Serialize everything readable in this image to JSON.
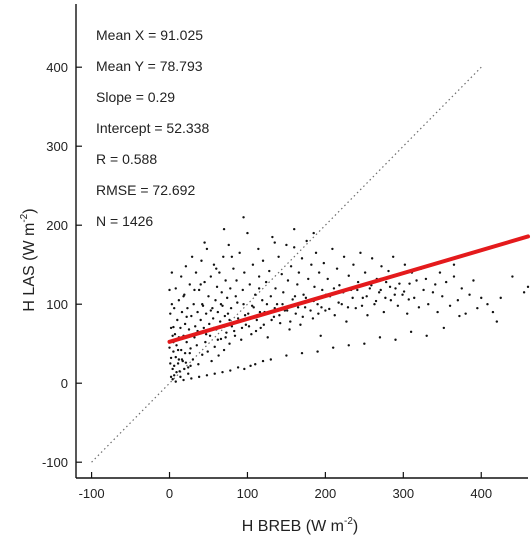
{
  "chart_data": {
    "type": "scatter",
    "xlabel": {
      "main": "H BREB (W m",
      "sup": "-2",
      "close": ")"
    },
    "ylabel": {
      "main": "H LAS (W m",
      "sup": "-2",
      "close": ")"
    },
    "xlim": [
      -120,
      460
    ],
    "ylim": [
      -120,
      480
    ],
    "xticks": [
      -100,
      0,
      100,
      200,
      300,
      400
    ],
    "yticks": [
      -100,
      0,
      100,
      200,
      300,
      400
    ],
    "grid": false,
    "stats": [
      "Mean X = 91.025",
      "Mean Y = 78.793",
      "Slope = 0.29",
      "Intercept = 52.338",
      "R = 0.588",
      "RMSE = 72.692",
      "N = 1426"
    ],
    "regression": {
      "slope": 0.29,
      "intercept": 52.338,
      "color": "#e41a1c"
    },
    "one_to_one_line": {
      "x": [
        -100,
        400
      ],
      "y": [
        -100,
        400
      ],
      "color": "#6e6e6e"
    },
    "points": [
      [
        2,
        32
      ],
      [
        3,
        54
      ],
      [
        4,
        18
      ],
      [
        5,
        71
      ],
      [
        5,
        40
      ],
      [
        6,
        95
      ],
      [
        6,
        10
      ],
      [
        7,
        62
      ],
      [
        8,
        120
      ],
      [
        8,
        33
      ],
      [
        9,
        48
      ],
      [
        10,
        80
      ],
      [
        11,
        25
      ],
      [
        12,
        105
      ],
      [
        12,
        58
      ],
      [
        13,
        15
      ],
      [
        14,
        70
      ],
      [
        15,
        135
      ],
      [
        15,
        42
      ],
      [
        16,
        90
      ],
      [
        17,
        28
      ],
      [
        18,
        60
      ],
      [
        19,
        112
      ],
      [
        20,
        75
      ],
      [
        20,
        38
      ],
      [
        21,
        148
      ],
      [
        22,
        52
      ],
      [
        23,
        95
      ],
      [
        24,
        20
      ],
      [
        25,
        68
      ],
      [
        26,
        125
      ],
      [
        27,
        44
      ],
      [
        28,
        85
      ],
      [
        29,
        160
      ],
      [
        30,
        30
      ],
      [
        31,
        100
      ],
      [
        32,
        58
      ],
      [
        33,
        72
      ],
      [
        34,
        140
      ],
      [
        35,
        48
      ],
      [
        36,
        90
      ],
      [
        37,
        24
      ],
      [
        38,
        118
      ],
      [
        39,
        64
      ],
      [
        40,
        80
      ],
      [
        41,
        155
      ],
      [
        42,
        36
      ],
      [
        43,
        98
      ],
      [
        44,
        70
      ],
      [
        45,
        128
      ],
      [
        46,
        52
      ],
      [
        47,
        88
      ],
      [
        48,
        170
      ],
      [
        49,
        40
      ],
      [
        50,
        110
      ],
      [
        51,
        75
      ],
      [
        52,
        60
      ],
      [
        53,
        135
      ],
      [
        54,
        28
      ],
      [
        55,
        95
      ],
      [
        56,
        82
      ],
      [
        57,
        150
      ],
      [
        58,
        46
      ],
      [
        59,
        105
      ],
      [
        60,
        68
      ],
      [
        61,
        122
      ],
      [
        62,
        90
      ],
      [
        63,
        35
      ],
      [
        64,
        140
      ],
      [
        65,
        78
      ],
      [
        66,
        56
      ],
      [
        67,
        115
      ],
      [
        68,
        98
      ],
      [
        69,
        160
      ],
      [
        70,
        42
      ],
      [
        71,
        85
      ],
      [
        72,
        130
      ],
      [
        73,
        64
      ],
      [
        74,
        108
      ],
      [
        75,
        88
      ],
      [
        76,
        175
      ],
      [
        77,
        50
      ],
      [
        78,
        120
      ],
      [
        79,
        95
      ],
      [
        80,
        72
      ],
      [
        82,
        145
      ],
      [
        84,
        60
      ],
      [
        85,
        110
      ],
      [
        86,
        130
      ],
      [
        88,
        82
      ],
      [
        90,
        165
      ],
      [
        92,
        55
      ],
      [
        94,
        118
      ],
      [
        95,
        100
      ],
      [
        96,
        140
      ],
      [
        98,
        74
      ],
      [
        100,
        190
      ],
      [
        101,
        88
      ],
      [
        103,
        125
      ],
      [
        105,
        62
      ],
      [
        107,
        150
      ],
      [
        108,
        96
      ],
      [
        110,
        112
      ],
      [
        112,
        80
      ],
      [
        114,
        170
      ],
      [
        115,
        135
      ],
      [
        117,
        70
      ],
      [
        119,
        105
      ],
      [
        120,
        155
      ],
      [
        122,
        90
      ],
      [
        124,
        128
      ],
      [
        126,
        58
      ],
      [
        128,
        142
      ],
      [
        130,
        110
      ],
      [
        132,
        185
      ],
      [
        134,
        84
      ],
      [
        136,
        120
      ],
      [
        138,
        100
      ],
      [
        140,
        160
      ],
      [
        142,
        76
      ],
      [
        144,
        138
      ],
      [
        146,
        115
      ],
      [
        148,
        92
      ],
      [
        150,
        175
      ],
      [
        152,
        130
      ],
      [
        154,
        68
      ],
      [
        156,
        148
      ],
      [
        158,
        106
      ],
      [
        160,
        195
      ],
      [
        162,
        88
      ],
      [
        164,
        125
      ],
      [
        166,
        140
      ],
      [
        168,
        74
      ],
      [
        170,
        158
      ],
      [
        172,
        112
      ],
      [
        174,
        96
      ],
      [
        176,
        180
      ],
      [
        178,
        132
      ],
      [
        180,
        104
      ],
      [
        182,
        150
      ],
      [
        184,
        82
      ],
      [
        186,
        122
      ],
      [
        188,
        165
      ],
      [
        190,
        100
      ],
      [
        192,
        140
      ],
      [
        194,
        60
      ],
      [
        196,
        118
      ],
      [
        198,
        152
      ],
      [
        200,
        92
      ],
      [
        203,
        132
      ],
      [
        206,
        110
      ],
      [
        209,
        170
      ],
      [
        212,
        86
      ],
      [
        215,
        145
      ],
      [
        218,
        124
      ],
      [
        221,
        100
      ],
      [
        224,
        160
      ],
      [
        227,
        78
      ],
      [
        230,
        136
      ],
      [
        233,
        118
      ],
      [
        236,
        150
      ],
      [
        239,
        95
      ],
      [
        242,
        128
      ],
      [
        245,
        165
      ],
      [
        248,
        108
      ],
      [
        251,
        140
      ],
      [
        254,
        86
      ],
      [
        257,
        120
      ],
      [
        260,
        158
      ],
      [
        263,
        100
      ],
      [
        266,
        132
      ],
      [
        269,
        115
      ],
      [
        272,
        148
      ],
      [
        275,
        90
      ],
      [
        278,
        128
      ],
      [
        281,
        142
      ],
      [
        284,
        105
      ],
      [
        287,
        160
      ],
      [
        290,
        120
      ],
      [
        293,
        98
      ],
      [
        296,
        138
      ],
      [
        299,
        112
      ],
      [
        302,
        150
      ],
      [
        305,
        88
      ],
      [
        308,
        126
      ],
      [
        311,
        140
      ],
      [
        314,
        108
      ],
      [
        317,
        130
      ],
      [
        320,
        96
      ],
      [
        323,
        145
      ],
      [
        326,
        118
      ],
      [
        329,
        132
      ],
      [
        332,
        100
      ],
      [
        335,
        150
      ],
      [
        338,
        115
      ],
      [
        341,
        125
      ],
      [
        344,
        90
      ],
      [
        347,
        140
      ],
      [
        350,
        110
      ],
      [
        355,
        128
      ],
      [
        360,
        98
      ],
      [
        365,
        135
      ],
      [
        370,
        105
      ],
      [
        375,
        120
      ],
      [
        380,
        88
      ],
      [
        385,
        112
      ],
      [
        390,
        130
      ],
      [
        395,
        95
      ],
      [
        400,
        108
      ],
      [
        408,
        100
      ],
      [
        415,
        90
      ],
      [
        420,
        78
      ],
      [
        455,
        115
      ],
      [
        460,
        122
      ],
      [
        440,
        135
      ],
      [
        425,
        108
      ],
      [
        365,
        150
      ],
      [
        372,
        85
      ],
      [
        352,
        70
      ],
      [
        330,
        60
      ],
      [
        310,
        65
      ],
      [
        290,
        55
      ],
      [
        270,
        58
      ],
      [
        250,
        50
      ],
      [
        230,
        48
      ],
      [
        210,
        45
      ],
      [
        190,
        40
      ],
      [
        170,
        38
      ],
      [
        150,
        35
      ],
      [
        130,
        30
      ],
      [
        120,
        28
      ],
      [
        110,
        24
      ],
      [
        104,
        22
      ],
      [
        96,
        18
      ],
      [
        88,
        20
      ],
      [
        78,
        16
      ],
      [
        68,
        14
      ],
      [
        58,
        12
      ],
      [
        48,
        10
      ],
      [
        38,
        8
      ],
      [
        28,
        6
      ],
      [
        18,
        4
      ],
      [
        8,
        2
      ],
      [
        12,
        30
      ],
      [
        18,
        110
      ],
      [
        22,
        84
      ],
      [
        26,
        38
      ],
      [
        32,
        118
      ],
      [
        36,
        66
      ],
      [
        42,
        100
      ],
      [
        47,
        62
      ],
      [
        53,
        92
      ],
      [
        57,
        70
      ],
      [
        62,
        55
      ],
      [
        66,
        100
      ],
      [
        72,
        58
      ],
      [
        77,
        80
      ],
      [
        83,
        66
      ],
      [
        87,
        102
      ],
      [
        93,
        70
      ],
      [
        97,
        86
      ],
      [
        102,
        72
      ],
      [
        106,
        98
      ],
      [
        111,
        66
      ],
      [
        116,
        90
      ],
      [
        121,
        74
      ],
      [
        125,
        100
      ],
      [
        131,
        80
      ],
      [
        135,
        95
      ],
      [
        141,
        86
      ],
      [
        145,
        100
      ],
      [
        151,
        92
      ],
      [
        155,
        78
      ],
      [
        161,
        110
      ],
      [
        165,
        96
      ],
      [
        171,
        84
      ],
      [
        175,
        108
      ],
      [
        181,
        92
      ],
      [
        185,
        104
      ],
      [
        191,
        88
      ],
      [
        195,
        96
      ],
      [
        201,
        112
      ],
      [
        205,
        94
      ],
      [
        211,
        120
      ],
      [
        217,
        102
      ],
      [
        223,
        115
      ],
      [
        229,
        96
      ],
      [
        235,
        108
      ],
      [
        241,
        118
      ],
      [
        247,
        98
      ],
      [
        253,
        110
      ],
      [
        259,
        124
      ],
      [
        265,
        104
      ],
      [
        271,
        118
      ],
      [
        277,
        108
      ],
      [
        283,
        122
      ],
      [
        289,
        112
      ],
      [
        295,
        126
      ],
      [
        301,
        116
      ],
      [
        307,
        106
      ],
      [
        4,
        5
      ],
      [
        6,
        22
      ],
      [
        9,
        14
      ],
      [
        11,
        42
      ],
      [
        14,
        8
      ],
      [
        16,
        30
      ],
      [
        19,
        18
      ],
      [
        21,
        26
      ],
      [
        24,
        12
      ],
      [
        27,
        22
      ],
      [
        0,
        118
      ],
      [
        1,
        88
      ],
      [
        2,
        70
      ],
      [
        3,
        100
      ],
      [
        3,
        140
      ],
      [
        4,
        60
      ],
      [
        1,
        25
      ],
      [
        0,
        45
      ],
      [
        2,
        8
      ],
      [
        5,
        52
      ],
      [
        40,
        125
      ],
      [
        60,
        145
      ],
      [
        80,
        160
      ],
      [
        45,
        178
      ],
      [
        70,
        195
      ],
      [
        95,
        210
      ],
      [
        115,
        120
      ],
      [
        135,
        178
      ],
      [
        160,
        172
      ],
      [
        185,
        190
      ]
    ]
  }
}
